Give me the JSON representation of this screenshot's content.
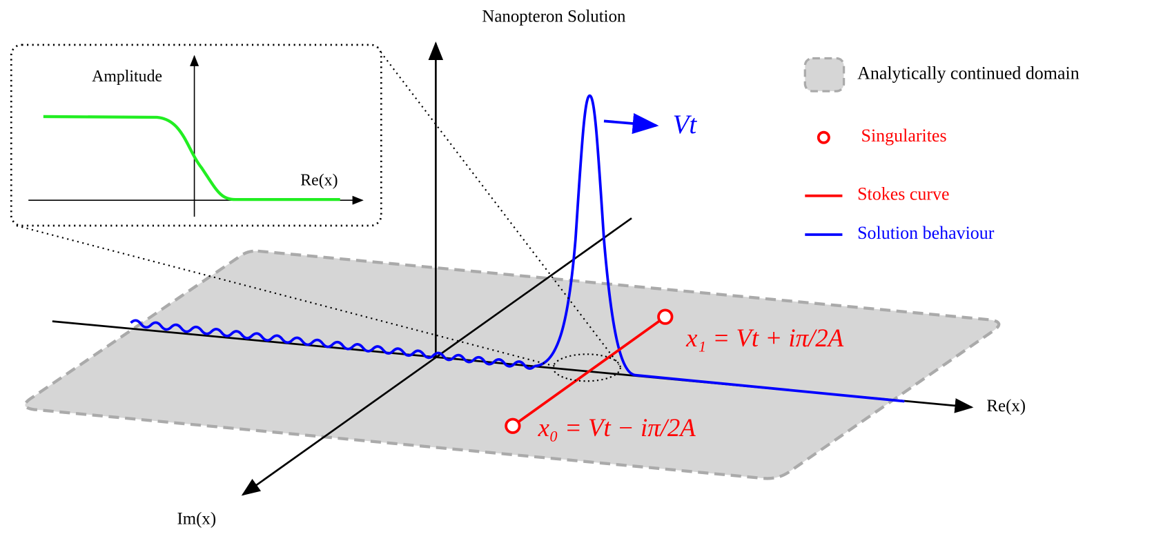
{
  "title": "Nanopteron Solution",
  "inset": {
    "y_label": "Amplitude",
    "x_label": "Re(x)"
  },
  "axes": {
    "re": "Re(x)",
    "im": "Im(x)"
  },
  "labels": {
    "vt": "Vt",
    "x1": "x₁ = Vt + iπ/2A",
    "x0": "x₀ = Vt − iπ/2A"
  },
  "legend": [
    {
      "label": "Analytically continued domain"
    },
    {
      "label": "Singularites"
    },
    {
      "label": "Stokes curve"
    },
    {
      "label": "Solution behaviour"
    }
  ]
}
